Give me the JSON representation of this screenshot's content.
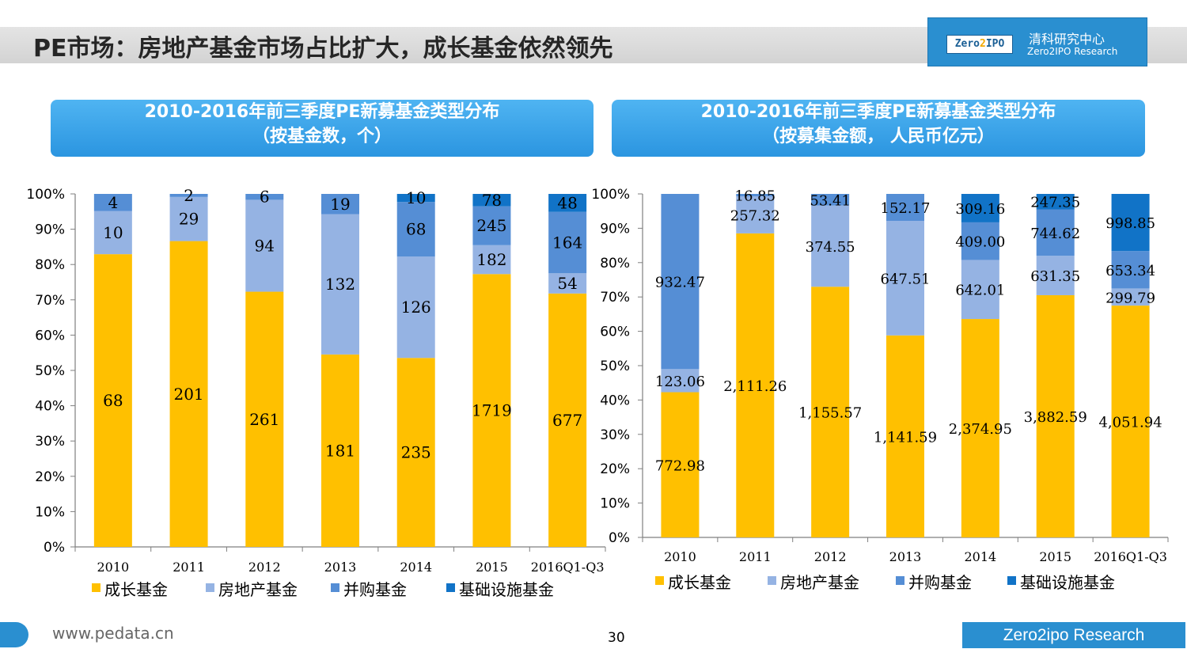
{
  "header": {
    "title": "PE市场：房地产基金市场占比扩大，成长基金依然领先",
    "logo_mark_a": "Zero",
    "logo_mark_b": "2",
    "logo_mark_c": "IPO",
    "logo_cn": "清科研究中心",
    "logo_en": "Zero2IPO Research"
  },
  "panels": {
    "left": {
      "line1": "2010-2016年前三季度PE新募基金类型分布",
      "line2": "（按基金数，个）"
    },
    "right": {
      "line1": "2010-2016年前三季度PE新募基金类型分布",
      "line2": "（按募集金额， 人民币亿元）"
    }
  },
  "footer": {
    "url": "www.pedata.cn",
    "page": "30",
    "brand": "Zero2ipo Research"
  },
  "colors": {
    "growth": "#FFC000",
    "real_estate": "#95B3E3",
    "mna": "#558ED5",
    "infrastructure": "#1173C7"
  },
  "chart_data": [
    {
      "type": "bar",
      "stacked": "percent",
      "categories": [
        "2010",
        "2011",
        "2012",
        "2013",
        "2014",
        "2015",
        "2016Q1-Q3"
      ],
      "series": [
        {
          "name": "成长基金",
          "values": [
            68,
            201,
            261,
            181,
            235,
            1719,
            677
          ],
          "labels": [
            "68",
            "201",
            "261",
            "181",
            "235",
            "1719",
            "677"
          ]
        },
        {
          "name": "房地产基金",
          "values": [
            10,
            29,
            94,
            132,
            126,
            182,
            54
          ],
          "labels": [
            "10",
            "29",
            "94",
            "132",
            "126",
            "182",
            "54"
          ]
        },
        {
          "name": "并购基金",
          "values": [
            4,
            2,
            6,
            19,
            68,
            245,
            164
          ],
          "labels": [
            "4",
            "2",
            "6",
            "19",
            "68",
            "245",
            "164"
          ]
        },
        {
          "name": "基础设施基金",
          "values": [
            0,
            0,
            0,
            0,
            10,
            78,
            48
          ],
          "labels": [
            "",
            "",
            "",
            "",
            "10",
            "78",
            "48"
          ]
        }
      ],
      "yticks": [
        "0%",
        "10%",
        "20%",
        "30%",
        "40%",
        "50%",
        "60%",
        "70%",
        "80%",
        "90%",
        "100%"
      ],
      "ylim": [
        0,
        100
      ],
      "legend": "bottom"
    },
    {
      "type": "bar",
      "stacked": "percent",
      "categories": [
        "2010",
        "2011",
        "2012",
        "2013",
        "2014",
        "2015",
        "2016Q1-Q3"
      ],
      "series": [
        {
          "name": "成长基金",
          "values": [
            772.98,
            2111.26,
            1155.57,
            1141.59,
            2374.95,
            3882.59,
            4051.94
          ],
          "labels": [
            "772.98",
            "2,111.26",
            "1,155.57",
            "1,141.59",
            "2,374.95",
            "3,882.59",
            "4,051.94"
          ]
        },
        {
          "name": "房地产基金",
          "values": [
            123.06,
            257.32,
            374.55,
            647.51,
            642.01,
            631.35,
            299.79
          ],
          "labels": [
            "123.06",
            "257.32",
            "374.55",
            "647.51",
            "642.01",
            "631.35",
            "299.79"
          ]
        },
        {
          "name": "并购基金",
          "values": [
            932.47,
            16.85,
            53.41,
            152.17,
            409.0,
            744.62,
            653.34
          ],
          "labels": [
            "932.47",
            "16.85",
            "53.41",
            "152.17",
            "409.00",
            "744.62",
            "653.34"
          ]
        },
        {
          "name": "基础设施基金",
          "values": [
            0,
            0,
            0,
            0,
            309.16,
            247.35,
            998.85
          ],
          "labels": [
            "",
            "",
            "",
            "",
            "309.16",
            "247.35",
            "998.85"
          ]
        }
      ],
      "yticks": [
        "0%",
        "10%",
        "20%",
        "30%",
        "40%",
        "50%",
        "60%",
        "70%",
        "80%",
        "90%",
        "100%"
      ],
      "ylim": [
        0,
        100
      ],
      "legend": "bottom"
    }
  ]
}
